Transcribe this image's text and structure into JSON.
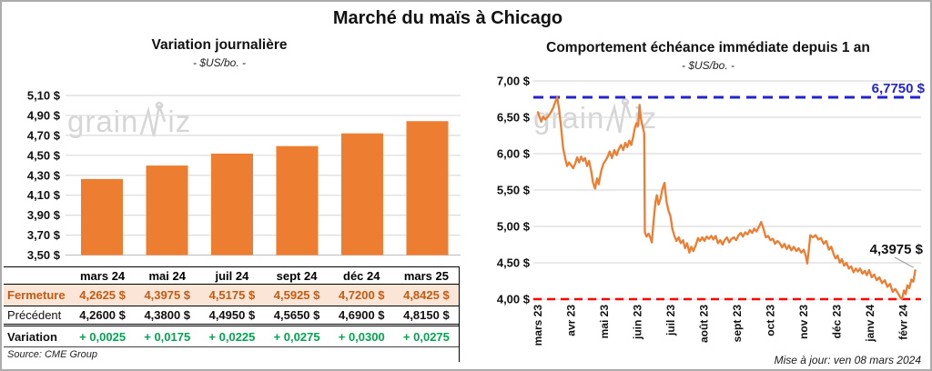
{
  "header": {
    "title": "Marché du maïs à Chicago"
  },
  "watermark": {
    "prefix": "grain",
    "suffix": "iz"
  },
  "chart_data": [
    {
      "type": "bar",
      "title": "Variation journalière",
      "subtitle": "- $US/bo. -",
      "categories": [
        "mars 24",
        "mai 24",
        "juil 24",
        "sept 24",
        "déc 24",
        "mars 25"
      ],
      "values": [
        4.2625,
        4.3975,
        4.5175,
        4.5925,
        4.72,
        4.8425
      ],
      "ylim": [
        3.5,
        5.1
      ],
      "ytick_step": 0.2,
      "yticks": [
        "5,10 $",
        "4,90 $",
        "4,70 $",
        "4,50 $",
        "4,30 $",
        "4,10 $",
        "3,90 $",
        "3,70 $",
        "3,50 $"
      ],
      "bar_color": "#ED7D31",
      "grid": true,
      "legend": "none"
    },
    {
      "type": "line",
      "title": "Comportement échéance immédiate depuis 1 an",
      "subtitle": "- $US/bo. -",
      "x_tick_labels": [
        "mars 23",
        "avr 23",
        "mai 23",
        "juin 23",
        "juil 23",
        "août 23",
        "sept 23",
        "oct 23",
        "nov 23",
        "déc 23",
        "janv 24",
        "févr 24"
      ],
      "ylim": [
        4.0,
        7.0
      ],
      "ytick_step": 0.5,
      "yticks": [
        "7,00 $",
        "6,50 $",
        "6,00 $",
        "5,50 $",
        "5,00 $",
        "4,50 $",
        "4,00 $"
      ],
      "line_color": "#ED7D31",
      "grid": true,
      "legend": "none",
      "high_line": {
        "value": 6.775,
        "label": "6,7750 $",
        "color": "#2424CC",
        "style": "dashed"
      },
      "low_line": {
        "value": 4.0,
        "color": "#FF0000",
        "style": "dashed"
      },
      "last_point_label": "4,3975 $",
      "last_point_value": 4.3975,
      "points": [
        [
          0,
          6.57
        ],
        [
          0.06,
          6.49
        ],
        [
          0.1,
          6.44
        ],
        [
          0.16,
          6.51
        ],
        [
          0.22,
          6.47
        ],
        [
          0.3,
          6.51
        ],
        [
          0.38,
          6.56
        ],
        [
          0.46,
          6.63
        ],
        [
          0.52,
          6.71
        ],
        [
          0.58,
          6.775
        ],
        [
          0.64,
          6.6
        ],
        [
          0.7,
          6.36
        ],
        [
          0.76,
          6.08
        ],
        [
          0.83,
          5.92
        ],
        [
          0.88,
          5.83
        ],
        [
          0.94,
          5.88
        ],
        [
          1,
          5.84
        ],
        [
          1.06,
          5.8
        ],
        [
          1.12,
          5.86
        ],
        [
          1.18,
          5.95
        ],
        [
          1.24,
          5.88
        ],
        [
          1.3,
          5.96
        ],
        [
          1.36,
          5.9
        ],
        [
          1.42,
          5.94
        ],
        [
          1.48,
          5.83
        ],
        [
          1.54,
          5.9
        ],
        [
          1.6,
          5.77
        ],
        [
          1.66,
          5.6
        ],
        [
          1.72,
          5.52
        ],
        [
          1.78,
          5.66
        ],
        [
          1.83,
          5.58
        ],
        [
          1.9,
          5.75
        ],
        [
          1.97,
          5.86
        ],
        [
          2.04,
          5.91
        ],
        [
          2.1,
          5.96
        ],
        [
          2.16,
          6.03
        ],
        [
          2.23,
          5.94
        ],
        [
          2.3,
          6.05
        ],
        [
          2.37,
          5.98
        ],
        [
          2.44,
          6.07
        ],
        [
          2.5,
          6.12
        ],
        [
          2.57,
          6.05
        ],
        [
          2.63,
          6.15
        ],
        [
          2.69,
          6.09
        ],
        [
          2.75,
          6.18
        ],
        [
          2.81,
          6.12
        ],
        [
          2.87,
          6.24
        ],
        [
          2.92,
          6.36
        ],
        [
          2.97,
          6.42
        ],
        [
          3.02,
          6.38
        ],
        [
          3.06,
          6.67
        ],
        [
          3.1,
          6.48
        ],
        [
          3.14,
          6.4
        ],
        [
          3.18,
          6.32
        ],
        [
          3.2,
          6.28
        ],
        [
          3.22,
          4.92
        ],
        [
          3.27,
          4.86
        ],
        [
          3.33,
          4.9
        ],
        [
          3.38,
          4.85
        ],
        [
          3.43,
          4.78
        ],
        [
          3.48,
          5.06
        ],
        [
          3.54,
          5.34
        ],
        [
          3.58,
          5.43
        ],
        [
          3.63,
          5.3
        ],
        [
          3.69,
          5.38
        ],
        [
          3.75,
          5.52
        ],
        [
          3.81,
          5.6
        ],
        [
          3.87,
          5.34
        ],
        [
          3.93,
          5.22
        ],
        [
          3.99,
          5.14
        ],
        [
          4.05,
          4.96
        ],
        [
          4.11,
          4.87
        ],
        [
          4.17,
          4.8
        ],
        [
          4.24,
          4.85
        ],
        [
          4.3,
          4.77
        ],
        [
          4.37,
          4.81
        ],
        [
          4.43,
          4.7
        ],
        [
          4.49,
          4.77
        ],
        [
          4.56,
          4.64
        ],
        [
          4.62,
          4.72
        ],
        [
          4.68,
          4.66
        ],
        [
          4.75,
          4.74
        ],
        [
          4.82,
          4.84
        ],
        [
          4.88,
          4.8
        ],
        [
          4.95,
          4.85
        ],
        [
          5.01,
          4.8
        ],
        [
          5.08,
          4.86
        ],
        [
          5.15,
          4.83
        ],
        [
          5.22,
          4.87
        ],
        [
          5.28,
          4.82
        ],
        [
          5.35,
          4.87
        ],
        [
          5.42,
          4.77
        ],
        [
          5.49,
          4.81
        ],
        [
          5.56,
          4.75
        ],
        [
          5.62,
          4.81
        ],
        [
          5.69,
          4.85
        ],
        [
          5.76,
          4.78
        ],
        [
          5.83,
          4.83
        ],
        [
          5.9,
          4.85
        ],
        [
          5.97,
          4.81
        ],
        [
          6.04,
          4.88
        ],
        [
          6.11,
          4.91
        ],
        [
          6.17,
          4.86
        ],
        [
          6.24,
          4.92
        ],
        [
          6.31,
          4.89
        ],
        [
          6.38,
          4.95
        ],
        [
          6.45,
          4.91
        ],
        [
          6.51,
          4.97
        ],
        [
          6.58,
          4.93
        ],
        [
          6.65,
          4.99
        ],
        [
          6.72,
          5.06
        ],
        [
          6.79,
          4.97
        ],
        [
          6.86,
          4.85
        ],
        [
          6.93,
          4.87
        ],
        [
          7,
          4.81
        ],
        [
          7.07,
          4.83
        ],
        [
          7.14,
          4.76
        ],
        [
          7.21,
          4.8
        ],
        [
          7.28,
          4.77
        ],
        [
          7.35,
          4.71
        ],
        [
          7.42,
          4.76
        ],
        [
          7.49,
          4.69
        ],
        [
          7.56,
          4.74
        ],
        [
          7.63,
          4.67
        ],
        [
          7.7,
          4.72
        ],
        [
          7.78,
          4.66
        ],
        [
          7.85,
          4.7
        ],
        [
          7.93,
          4.64
        ],
        [
          8,
          4.68
        ],
        [
          8.06,
          4.6
        ],
        [
          8.11,
          4.49
        ],
        [
          8.16,
          4.7
        ],
        [
          8.2,
          4.88
        ],
        [
          8.28,
          4.85
        ],
        [
          8.36,
          4.88
        ],
        [
          8.44,
          4.82
        ],
        [
          8.52,
          4.84
        ],
        [
          8.6,
          4.76
        ],
        [
          8.68,
          4.8
        ],
        [
          8.76,
          4.68
        ],
        [
          8.83,
          4.72
        ],
        [
          8.9,
          4.62
        ],
        [
          8.96,
          4.56
        ],
        [
          9.02,
          4.6
        ],
        [
          9.09,
          4.5
        ],
        [
          9.15,
          4.55
        ],
        [
          9.22,
          4.46
        ],
        [
          9.29,
          4.5
        ],
        [
          9.36,
          4.42
        ],
        [
          9.43,
          4.45
        ],
        [
          9.5,
          4.37
        ],
        [
          9.57,
          4.42
        ],
        [
          9.63,
          4.38
        ],
        [
          9.7,
          4.42
        ],
        [
          9.77,
          4.35
        ],
        [
          9.84,
          4.39
        ],
        [
          9.9,
          4.33
        ],
        [
          9.97,
          4.4
        ],
        [
          10.05,
          4.3
        ],
        [
          10.12,
          4.34
        ],
        [
          10.2,
          4.26
        ],
        [
          10.28,
          4.3
        ],
        [
          10.36,
          4.22
        ],
        [
          10.44,
          4.26
        ],
        [
          10.52,
          4.17
        ],
        [
          10.6,
          4.21
        ],
        [
          10.68,
          4.1
        ],
        [
          10.76,
          4.14
        ],
        [
          10.84,
          4.08
        ],
        [
          10.9,
          4.03
        ],
        [
          10.96,
          4
        ],
        [
          11.02,
          4.12
        ],
        [
          11.07,
          4.07
        ],
        [
          11.12,
          4.19
        ],
        [
          11.18,
          4.15
        ],
        [
          11.24,
          4.27
        ],
        [
          11.3,
          4.24
        ],
        [
          11.36,
          4.3975
        ]
      ]
    }
  ],
  "table": {
    "columns": [
      "mars 24",
      "mai 24",
      "juil 24",
      "sept 24",
      "déc 24",
      "mars 25"
    ],
    "rows": [
      {
        "label": "Fermeture",
        "values": [
          "4,2625 $",
          "4,3975 $",
          "4,5175 $",
          "4,5925 $",
          "4,7200 $",
          "4,8425 $"
        ]
      },
      {
        "label": "Précédent",
        "values": [
          "4,2600 $",
          "4,3800 $",
          "4,4950 $",
          "4,5650 $",
          "4,6900 $",
          "4,8150 $"
        ]
      },
      {
        "label": "Variation",
        "values": [
          "+ 0,0025",
          "+ 0,0175",
          "+ 0,0225",
          "+ 0,0275",
          "+ 0,0300",
          "+ 0,0275"
        ]
      }
    ],
    "source": "Source: CME Group"
  },
  "footer": {
    "updated": "Mise à jour: ven 08 mars 2024"
  },
  "colors": {
    "accent_orange": "#ED7D31",
    "fermeture_bg": "#FBE5D6",
    "fermeture_text": "#C55A11",
    "variation_green": "#00A651",
    "high_blue": "#2424CC",
    "low_red": "#FF0000",
    "gridline": "#DCDCDC"
  }
}
